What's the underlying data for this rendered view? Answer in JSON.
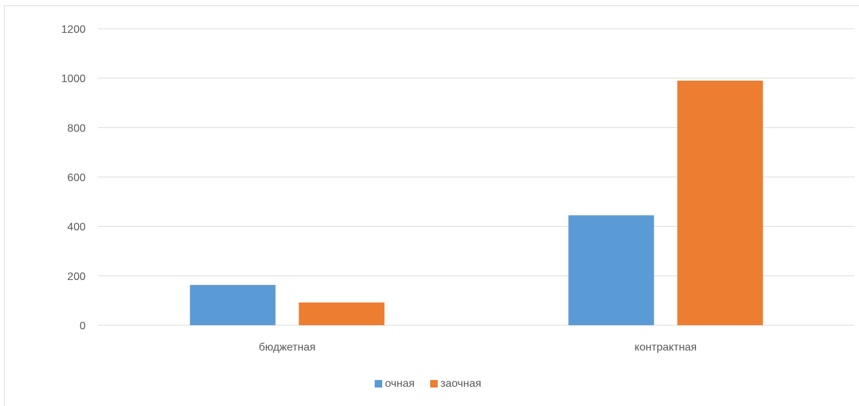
{
  "chart_data": {
    "type": "bar",
    "categories": [
      "бюджетная",
      "контрактная"
    ],
    "series": [
      {
        "name": "очная",
        "values": [
          163,
          445
        ],
        "color": "#5b9bd5"
      },
      {
        "name": "заочная",
        "values": [
          92,
          990
        ],
        "color": "#ed7d31"
      }
    ],
    "title": "",
    "xlabel": "",
    "ylabel": "",
    "ylim": [
      0,
      1200
    ],
    "yticks": [
      "0",
      "200",
      "400",
      "600",
      "800",
      "1000",
      "1200"
    ],
    "grid": true,
    "legend_position": "bottom"
  }
}
